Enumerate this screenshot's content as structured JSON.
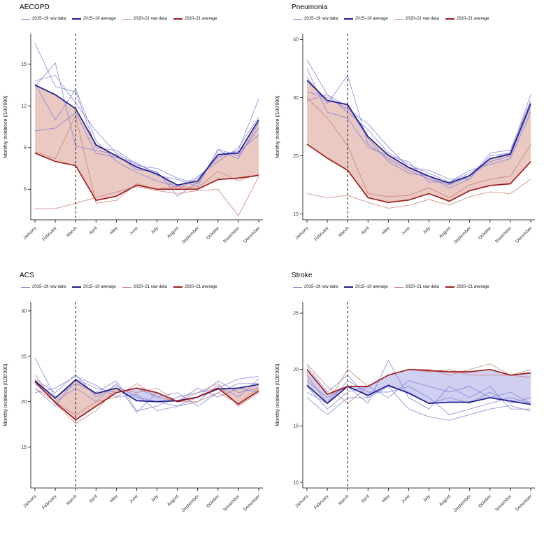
{
  "figure": {
    "dashed_line_month": "March",
    "legend": [
      {
        "label": "2015–19 raw data",
        "color": "#8383dc",
        "weight": "thin"
      },
      {
        "label": "2015–19 average",
        "color": "#1b1b94",
        "weight": "thick"
      },
      {
        "label": "2020–21 raw data",
        "color": "#cb7f76",
        "weight": "thin"
      },
      {
        "label": "2020–21 average",
        "color": "#a11d1d",
        "weight": "thick"
      }
    ],
    "colors": {
      "raw_2015_19": "#8383dc",
      "avg_2015_19": "#1b1b94",
      "raw_2020_21": "#cb7f76",
      "avg_2020_21": "#a11d1d",
      "fill_decrease": "#c4705f",
      "fill_increase": "#8080d8",
      "fill_opacity": 0.38
    }
  },
  "chart_data": [
    {
      "type": "line",
      "title": "AECOPD",
      "ylabel": "Monthly incidence (/100'000)",
      "categories": [
        "January",
        "February",
        "March",
        "April",
        "May",
        "June",
        "July",
        "August",
        "September",
        "October",
        "November",
        "December"
      ],
      "ylim": [
        3.8,
        17.2
      ],
      "yticks": [
        6,
        9,
        12,
        15
      ],
      "vline_index": 2,
      "legend_position": "top",
      "grid": false,
      "series": [
        {
          "name": "2015–19 raw y1",
          "group": "raw_2015_19",
          "values": [
            16.5,
            13.4,
            13.0,
            9.0,
            8.8,
            7.8,
            7.2,
            6.0,
            6.8,
            8.3,
            8.8,
            12.5
          ]
        },
        {
          "name": "2015–19 raw y2",
          "group": "raw_2015_19",
          "values": [
            13.8,
            14.2,
            12.2,
            10.2,
            8.6,
            7.7,
            7.5,
            6.8,
            6.4,
            8.8,
            8.2,
            10.8
          ]
        },
        {
          "name": "2015–19 raw y3",
          "group": "raw_2015_19",
          "values": [
            13.6,
            11.0,
            13.2,
            9.5,
            8.0,
            7.2,
            6.6,
            6.2,
            6.9,
            8.0,
            9.0,
            11.2
          ]
        },
        {
          "name": "2015–19 raw y4",
          "group": "raw_2015_19",
          "values": [
            10.2,
            10.4,
            11.5,
            8.6,
            8.3,
            7.9,
            7.0,
            6.7,
            6.2,
            8.9,
            8.4,
            10.4
          ]
        },
        {
          "name": "2015–19 raw y5",
          "group": "raw_2015_19",
          "values": [
            13.4,
            15.1,
            9.1,
            8.8,
            8.5,
            7.4,
            7.3,
            5.5,
            6.5,
            8.5,
            8.7,
            9.9
          ]
        },
        {
          "name": "2015–19 average",
          "group": "avg_2015_19",
          "values": [
            13.5,
            12.8,
            11.8,
            9.2,
            8.4,
            7.6,
            7.1,
            6.3,
            6.6,
            8.5,
            8.6,
            11.0
          ]
        },
        {
          "name": "2020–21 raw y1",
          "group": "raw_2020_21",
          "values": [
            8.7,
            8.2,
            11.3,
            5.0,
            5.2,
            6.4,
            6.0,
            6.2,
            6.1,
            7.3,
            6.6,
            7.1
          ]
        },
        {
          "name": "2020–21 raw y2",
          "group": "raw_2020_21",
          "values": [
            4.6,
            4.6,
            5.0,
            5.4,
            5.8,
            6.2,
            5.9,
            5.7,
            5.9,
            6.0,
            4.1,
            6.9
          ]
        },
        {
          "name": "2020–21 average",
          "group": "avg_2020_21",
          "values": [
            8.6,
            8.0,
            7.7,
            5.2,
            5.5,
            6.3,
            6.0,
            6.0,
            6.0,
            6.7,
            6.8,
            7.0
          ]
        }
      ]
    },
    {
      "type": "line",
      "title": "Pneumonia",
      "ylabel": "Monthly incidence (/100'000)",
      "categories": [
        "January",
        "February",
        "March",
        "April",
        "May",
        "June",
        "July",
        "August",
        "September",
        "October",
        "November",
        "December"
      ],
      "ylim": [
        9,
        41
      ],
      "yticks": [
        10,
        20,
        30,
        40
      ],
      "vline_index": 2,
      "legend_position": "top",
      "grid": false,
      "series": [
        {
          "name": "2015–19 raw y1",
          "group": "raw_2015_19",
          "values": [
            36.5,
            30.5,
            27.5,
            24.5,
            20.5,
            18.5,
            17.0,
            15.5,
            17.0,
            19.5,
            20.5,
            30.5
          ]
        },
        {
          "name": "2015–19 raw y2",
          "group": "raw_2015_19",
          "values": [
            33.5,
            29.0,
            33.8,
            22.0,
            19.5,
            17.5,
            16.0,
            15.0,
            16.5,
            19.0,
            20.0,
            28.5
          ]
        },
        {
          "name": "2015–19 raw y3",
          "group": "raw_2015_19",
          "values": [
            31.0,
            30.0,
            28.0,
            25.5,
            21.5,
            18.0,
            17.5,
            16.0,
            16.0,
            20.5,
            21.0,
            29.5
          ]
        },
        {
          "name": "2015–19 raw y4",
          "group": "raw_2015_19",
          "values": [
            35.0,
            27.5,
            26.5,
            21.5,
            20.0,
            19.0,
            15.5,
            15.5,
            17.5,
            18.5,
            19.5,
            27.5
          ]
        },
        {
          "name": "2015–19 raw y5",
          "group": "raw_2015_19",
          "values": [
            29.5,
            30.5,
            28.5,
            23.0,
            19.0,
            17.0,
            16.5,
            14.5,
            16.0,
            20.0,
            20.5,
            29.0
          ]
        },
        {
          "name": "2015–19 average",
          "group": "avg_2015_19",
          "values": [
            33.0,
            29.5,
            28.8,
            23.3,
            20.1,
            18.0,
            16.5,
            15.3,
            16.6,
            19.5,
            20.3,
            29.0
          ]
        },
        {
          "name": "2020–21 raw y1",
          "group": "raw_2020_21",
          "values": [
            30.0,
            26.5,
            21.8,
            13.5,
            13.0,
            13.2,
            14.5,
            12.8,
            15.0,
            16.0,
            16.5,
            22.0
          ]
        },
        {
          "name": "2020–21 raw y2",
          "group": "raw_2020_21",
          "values": [
            13.5,
            12.8,
            13.2,
            12.0,
            11.0,
            11.5,
            12.5,
            11.5,
            13.0,
            13.8,
            13.5,
            16.0
          ]
        },
        {
          "name": "2020–21 average",
          "group": "avg_2020_21",
          "values": [
            22.0,
            19.6,
            17.5,
            12.8,
            12.0,
            12.4,
            13.5,
            12.2,
            14.0,
            14.9,
            15.2,
            19.0
          ]
        }
      ]
    },
    {
      "type": "line",
      "title": "ACS",
      "ylabel": "Monthly incidence (/100'000)",
      "categories": [
        "January",
        "February",
        "March",
        "April",
        "May",
        "June",
        "July",
        "August",
        "September",
        "October",
        "November",
        "December"
      ],
      "ylim": [
        10.5,
        31
      ],
      "yticks": [
        15,
        20,
        25,
        30
      ],
      "vline_index": 2,
      "legend_position": "top",
      "grid": false,
      "series": [
        {
          "name": "2015–19 raw y1",
          "group": "raw_2015_19",
          "values": [
            24.8,
            20.5,
            22.0,
            21.0,
            22.3,
            19.0,
            19.5,
            20.5,
            21.0,
            21.5,
            22.5,
            22.8
          ]
        },
        {
          "name": "2015–19 raw y2",
          "group": "raw_2015_19",
          "values": [
            22.5,
            21.0,
            23.0,
            20.5,
            21.8,
            20.5,
            20.0,
            19.5,
            20.5,
            22.3,
            21.0,
            21.5
          ]
        },
        {
          "name": "2015–19 raw y3",
          "group": "raw_2015_19",
          "values": [
            21.5,
            19.5,
            22.5,
            21.5,
            21.0,
            21.5,
            20.5,
            21.0,
            19.5,
            21.0,
            22.0,
            22.0
          ]
        },
        {
          "name": "2015–19 raw y4",
          "group": "raw_2015_19",
          "values": [
            22.0,
            20.0,
            21.5,
            20.0,
            22.0,
            18.8,
            21.0,
            20.0,
            21.5,
            20.5,
            21.5,
            21.0
          ]
        },
        {
          "name": "2015–19 raw y5",
          "group": "raw_2015_19",
          "values": [
            21.0,
            21.5,
            22.8,
            21.8,
            20.5,
            20.8,
            19.0,
            19.5,
            20.0,
            21.8,
            20.5,
            22.5
          ]
        },
        {
          "name": "2015–19 average",
          "group": "avg_2015_19",
          "values": [
            22.3,
            20.4,
            22.4,
            20.9,
            21.5,
            20.1,
            20.0,
            20.1,
            20.5,
            21.4,
            21.5,
            21.9
          ]
        },
        {
          "name": "2020–21 raw y1",
          "group": "raw_2020_21",
          "values": [
            23.0,
            19.8,
            17.6,
            19.0,
            21.5,
            21.0,
            21.5,
            20.0,
            21.0,
            22.0,
            19.5,
            21.0
          ]
        },
        {
          "name": "2020–21 raw y2",
          "group": "raw_2020_21",
          "values": [
            21.5,
            20.0,
            18.5,
            20.0,
            20.5,
            22.0,
            20.5,
            20.0,
            20.0,
            21.0,
            19.8,
            21.5
          ]
        },
        {
          "name": "2020–21 average",
          "group": "avg_2020_21",
          "values": [
            22.2,
            19.9,
            18.0,
            19.5,
            21.0,
            21.5,
            21.0,
            20.0,
            20.5,
            21.5,
            19.7,
            21.2
          ]
        }
      ]
    },
    {
      "type": "line",
      "title": "Stroke",
      "ylabel": "Monthly incidence (/100'000)",
      "categories": [
        "January",
        "February",
        "March",
        "April",
        "May",
        "June",
        "July",
        "August",
        "September",
        "October",
        "November",
        "December"
      ],
      "ylim": [
        9.5,
        26
      ],
      "yticks": [
        10,
        15,
        20,
        25
      ],
      "vline_index": 2,
      "legend_position": "top",
      "grid": false,
      "series": [
        {
          "name": "2015–19 raw y1",
          "group": "raw_2015_19",
          "values": [
            20.3,
            18.0,
            19.5,
            17.5,
            18.5,
            18.0,
            17.0,
            17.5,
            17.0,
            18.0,
            17.0,
            17.5
          ]
        },
        {
          "name": "2015–19 raw y2",
          "group": "raw_2015_19",
          "values": [
            18.5,
            16.5,
            18.0,
            18.5,
            17.5,
            19.0,
            18.5,
            18.0,
            18.5,
            17.5,
            18.0,
            17.0
          ]
        },
        {
          "name": "2015–19 raw y3",
          "group": "raw_2015_19",
          "values": [
            19.0,
            17.5,
            18.5,
            17.0,
            20.8,
            17.5,
            16.5,
            18.5,
            17.5,
            18.5,
            16.5,
            16.5
          ]
        },
        {
          "name": "2015–19 raw y4",
          "group": "raw_2015_19",
          "values": [
            18.0,
            17.0,
            19.0,
            18.0,
            18.0,
            18.5,
            17.5,
            16.0,
            16.5,
            17.0,
            17.5,
            17.0
          ]
        },
        {
          "name": "2015–19 raw y5",
          "group": "raw_2015_19",
          "values": [
            17.5,
            16.0,
            17.5,
            17.5,
            18.5,
            16.5,
            15.8,
            15.5,
            16.0,
            16.5,
            16.8,
            16.3
          ]
        },
        {
          "name": "2015–19 average",
          "group": "avg_2015_19",
          "values": [
            18.6,
            17.0,
            18.5,
            17.7,
            18.6,
            17.9,
            17.0,
            17.1,
            17.1,
            17.5,
            17.2,
            16.9
          ]
        },
        {
          "name": "2020–21 raw y1",
          "group": "raw_2020_21",
          "values": [
            20.5,
            18.5,
            17.0,
            18.5,
            19.5,
            20.0,
            20.0,
            19.5,
            20.0,
            20.5,
            19.5,
            20.0
          ]
        },
        {
          "name": "2020–21 raw y2",
          "group": "raw_2020_21",
          "values": [
            19.5,
            17.0,
            20.0,
            18.5,
            19.5,
            20.0,
            19.8,
            20.0,
            19.5,
            19.5,
            19.5,
            19.3
          ]
        },
        {
          "name": "2020–21 average",
          "group": "avg_2020_21",
          "values": [
            20.0,
            17.8,
            18.5,
            18.5,
            19.5,
            20.0,
            19.9,
            19.8,
            19.8,
            20.0,
            19.5,
            19.7
          ]
        }
      ]
    }
  ]
}
